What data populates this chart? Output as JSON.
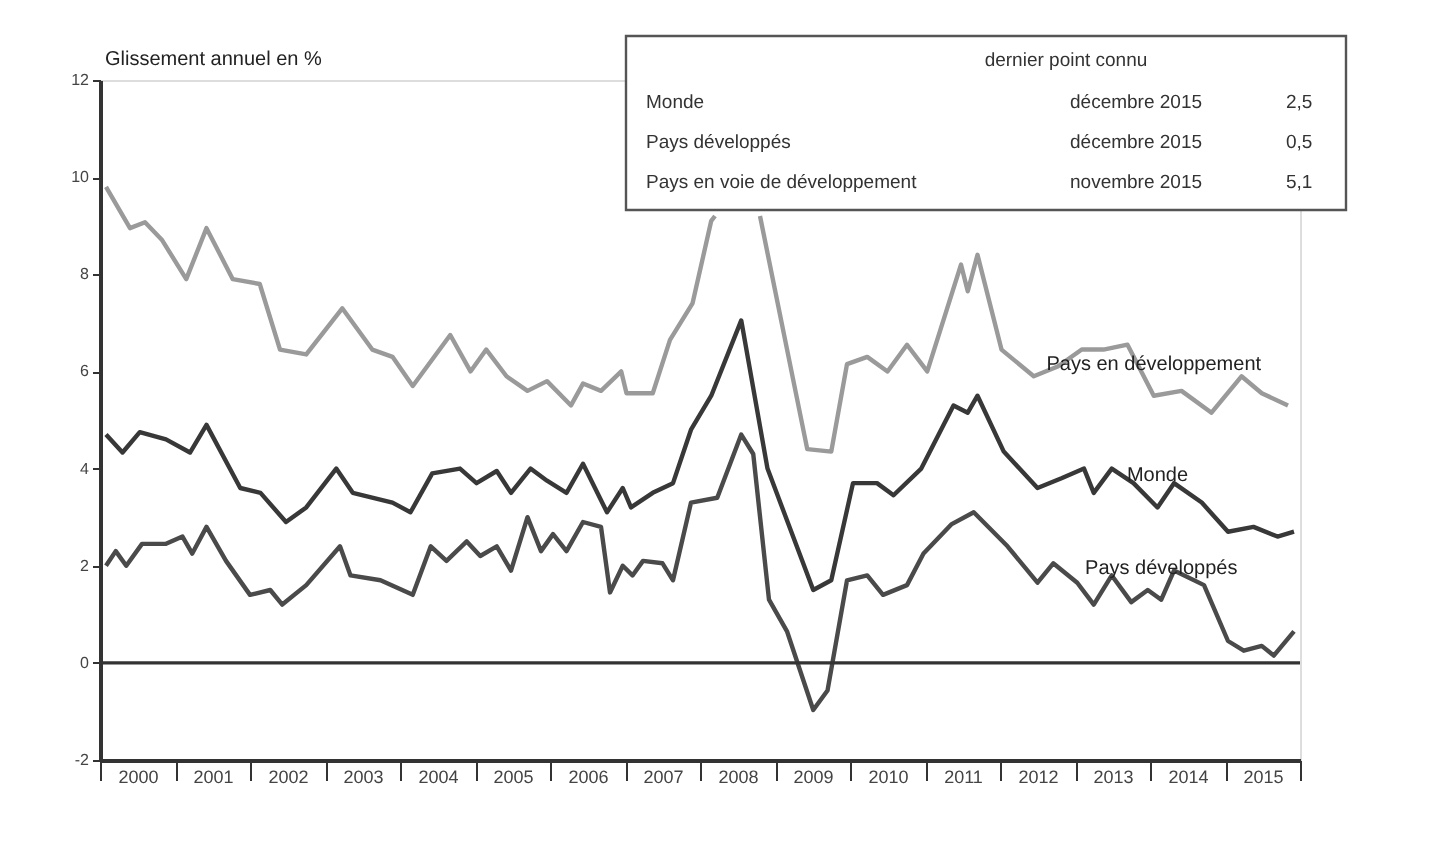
{
  "chart_data": {
    "type": "line",
    "ylabel": "Glissement annuel en %",
    "xlim": [
      2000,
      2016
    ],
    "ylim": [
      -2,
      12
    ],
    "yticks": [
      12,
      10,
      8,
      6,
      4,
      2,
      0,
      -2
    ],
    "xticks": [
      {
        "value": 2000,
        "label": null
      },
      {
        "value": 2000.5,
        "label": "2000"
      },
      {
        "value": 2001,
        "label": null
      },
      {
        "value": 2001.5,
        "label": "2001"
      },
      {
        "value": 2002,
        "label": null
      },
      {
        "value": 2002.5,
        "label": "2002"
      },
      {
        "value": 2003,
        "label": null
      },
      {
        "value": 2003.5,
        "label": "2003"
      },
      {
        "value": 2004,
        "label": null
      },
      {
        "value": 2004.5,
        "label": "2004"
      },
      {
        "value": 2005,
        "label": null
      },
      {
        "value": 2005.5,
        "label": "2005"
      },
      {
        "value": 2006,
        "label": null
      },
      {
        "value": 2006.5,
        "label": "2006"
      },
      {
        "value": 2007,
        "label": null
      },
      {
        "value": 2007.5,
        "label": "2007"
      },
      {
        "value": 2008,
        "label": null
      },
      {
        "value": 2008.5,
        "label": "2008"
      },
      {
        "value": 2009,
        "label": null
      },
      {
        "value": 2009.5,
        "label": "2009"
      },
      {
        "value": 2010,
        "label": null
      },
      {
        "value": 2010.5,
        "label": "2010"
      },
      {
        "value": 2011,
        "label": null
      },
      {
        "value": 2011.5,
        "label": "2011"
      },
      {
        "value": 2012,
        "label": null
      },
      {
        "value": 2012.5,
        "label": "2012"
      },
      {
        "value": 2013,
        "label": null
      },
      {
        "value": 2013.5,
        "label": "2013"
      },
      {
        "value": 2014,
        "label": null
      },
      {
        "value": 2014.5,
        "label": "2014"
      },
      {
        "value": 2015,
        "label": null
      },
      {
        "value": 2015.5,
        "label": "2015"
      },
      {
        "value": 2016,
        "label": null
      }
    ],
    "grid": false,
    "line_style": "solid",
    "marker": "none",
    "ref_lines": [
      {
        "axis": "y",
        "value": 0,
        "color": "#333333",
        "line_style": "solid"
      }
    ],
    "annotations": [
      "dernier point connu",
      "Monde",
      "décembre 2015",
      "2,5",
      "Pays développés",
      "décembre 2015",
      "0,5",
      "Pays en voie de développement",
      "novembre 2015",
      "5,1"
    ],
    "series": [
      {
        "name": "Pays en développement",
        "color": "#9a9a9a",
        "x": [
          2000.08,
          2000.4,
          2000.6,
          2000.83,
          2001.15,
          2001.42,
          2001.77,
          2002.13,
          2002.4,
          2002.75,
          2003.23,
          2003.63,
          2003.9,
          2004.17,
          2004.67,
          2004.94,
          2005.15,
          2005.42,
          2005.7,
          2005.96,
          2006.28,
          2006.44,
          2006.68,
          2006.95,
          2007.02,
          2007.37,
          2007.6,
          2007.9,
          2008.15,
          2008.2,
          2008.5,
          2008.8,
          2009.43,
          2009.75,
          2009.96,
          2010.23,
          2010.5,
          2010.76,
          2011.03,
          2011.48,
          2011.57,
          2011.7,
          2012.02,
          2012.45,
          2012.77,
          2013.09,
          2013.38,
          2013.7,
          2014.05,
          2014.42,
          2014.82,
          2015.22,
          2015.49,
          2015.84
        ],
        "values": [
          9.8,
          8.95,
          9.07,
          8.7,
          7.9,
          8.95,
          7.9,
          7.8,
          6.45,
          6.35,
          7.3,
          6.45,
          6.3,
          5.7,
          6.75,
          6.0,
          6.45,
          5.9,
          5.6,
          5.8,
          5.3,
          5.75,
          5.6,
          6.0,
          5.55,
          5.55,
          6.65,
          7.4,
          9.1,
          9.2,
          null,
          9.2,
          4.4,
          4.35,
          6.15,
          6.3,
          6.0,
          6.55,
          6.0,
          8.2,
          7.65,
          8.4,
          6.45,
          5.9,
          6.1,
          6.45,
          6.45,
          6.55,
          5.5,
          5.6,
          5.15,
          5.9,
          5.55,
          5.3
        ]
      },
      {
        "name": "Monde",
        "color": "#383838",
        "x": [
          2000.08,
          2000.3,
          2000.53,
          2000.88,
          2001.2,
          2001.42,
          2001.87,
          2002.14,
          2002.48,
          2002.75,
          2003.15,
          2003.37,
          2003.9,
          2004.14,
          2004.43,
          2004.8,
          2005.02,
          2005.29,
          2005.48,
          2005.74,
          2005.96,
          2006.22,
          2006.44,
          2006.76,
          2006.97,
          2007.08,
          2007.37,
          2007.64,
          2007.88,
          2008.15,
          2008.55,
          2008.9,
          2009.51,
          2009.75,
          2010.04,
          2010.36,
          2010.58,
          2010.95,
          2011.38,
          2011.57,
          2011.7,
          2012.05,
          2012.5,
          2012.82,
          2013.12,
          2013.25,
          2013.49,
          2013.78,
          2014.1,
          2014.32,
          2014.69,
          2015.04,
          2015.38,
          2015.7,
          2015.92
        ],
        "values": [
          4.7,
          4.33,
          4.75,
          4.6,
          4.33,
          4.9,
          3.6,
          3.5,
          2.9,
          3.2,
          4.0,
          3.5,
          3.3,
          3.1,
          3.9,
          4.0,
          3.7,
          3.95,
          3.5,
          4.0,
          3.75,
          3.5,
          4.1,
          3.1,
          3.6,
          3.2,
          3.5,
          3.7,
          4.8,
          5.5,
          7.05,
          4.0,
          1.5,
          1.7,
          3.7,
          3.7,
          3.45,
          4.0,
          5.3,
          5.15,
          5.5,
          4.35,
          3.6,
          3.8,
          4.0,
          3.5,
          4.0,
          3.7,
          3.2,
          3.7,
          3.3,
          2.7,
          2.8,
          2.6,
          2.7
        ]
      },
      {
        "name": "Pays développés",
        "color": "#4a4a4a",
        "x": [
          2000.08,
          2000.21,
          2000.35,
          2000.56,
          2000.88,
          2001.1,
          2001.23,
          2001.42,
          2001.68,
          2002.0,
          2002.27,
          2002.43,
          2002.75,
          2003.2,
          2003.34,
          2003.74,
          2004.17,
          2004.41,
          2004.62,
          2004.89,
          2005.07,
          2005.29,
          2005.48,
          2005.7,
          2005.88,
          2006.04,
          2006.22,
          2006.44,
          2006.68,
          2006.8,
          2006.97,
          2007.1,
          2007.24,
          2007.5,
          2007.64,
          2007.88,
          2008.23,
          2008.55,
          2008.71,
          2008.92,
          2009.16,
          2009.51,
          2009.7,
          2009.96,
          2010.23,
          2010.44,
          2010.76,
          2010.98,
          2011.35,
          2011.65,
          2012.1,
          2012.5,
          2012.71,
          2013.03,
          2013.25,
          2013.49,
          2013.75,
          2013.97,
          2014.15,
          2014.32,
          2014.72,
          2015.04,
          2015.25,
          2015.49,
          2015.65,
          2015.92
        ],
        "values": [
          2.0,
          2.3,
          2.0,
          2.45,
          2.45,
          2.6,
          2.25,
          2.8,
          2.1,
          1.4,
          1.5,
          1.2,
          1.6,
          2.4,
          1.8,
          1.7,
          1.4,
          2.4,
          2.1,
          2.5,
          2.2,
          2.4,
          1.9,
          3.0,
          2.3,
          2.65,
          2.3,
          2.9,
          2.8,
          1.45,
          2.0,
          1.8,
          2.1,
          2.05,
          1.7,
          3.3,
          3.4,
          4.7,
          4.3,
          1.3,
          0.65,
          -0.97,
          -0.57,
          1.7,
          1.8,
          1.4,
          1.6,
          2.25,
          2.85,
          3.1,
          2.4,
          1.65,
          2.05,
          1.65,
          1.2,
          1.8,
          1.25,
          1.5,
          1.3,
          1.9,
          1.6,
          0.45,
          0.25,
          0.35,
          0.15,
          0.65
        ]
      }
    ]
  }
}
